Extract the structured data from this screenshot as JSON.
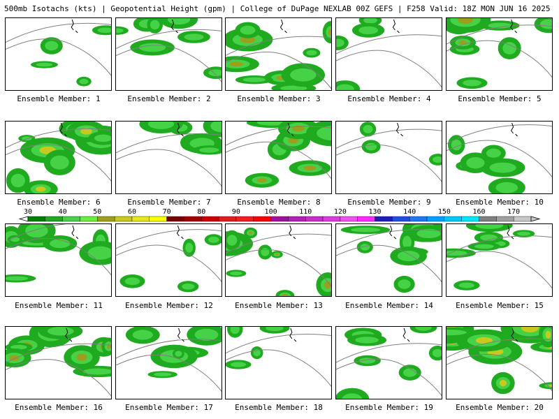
{
  "header": {
    "title": "500mb Isotachs (kts) | Geopotential Height (gpm) | College of DuPage NEXLAB   00Z GEFS | F258 Valid: 18Z MON JUN 16 2025"
  },
  "colorbar": {
    "labels": [
      "30",
      "40",
      "50",
      "60",
      "70",
      "80",
      "90",
      "100",
      "110",
      "120",
      "130",
      "140",
      "150",
      "160",
      "170"
    ],
    "colors": [
      "#007f00",
      "#1faa1f",
      "#46d246",
      "#68ef3c",
      "#9e9e1e",
      "#c8c81e",
      "#e6e61e",
      "#ffff00",
      "#7a0000",
      "#a00000",
      "#c80000",
      "#dc1e1e",
      "#f01e1e",
      "#ff0000",
      "#a0109e",
      "#b41eb4",
      "#c82dc8",
      "#dc3cdc",
      "#f050f0",
      "#ff28ff",
      "#1e1eb4",
      "#1e50dc",
      "#1e78f0",
      "#00a0ff",
      "#00c8ff",
      "#00e6ff",
      "#808080",
      "#a0a0a0",
      "#c8c8c8"
    ]
  },
  "members": [
    {
      "label": "Ensemble Member: 1",
      "intensity": 0.05
    },
    {
      "label": "Ensemble Member: 2",
      "intensity": 0.35
    },
    {
      "label": "Ensemble Member: 3",
      "intensity": 0.55
    },
    {
      "label": "Ensemble Member: 4",
      "intensity": 0.06
    },
    {
      "label": "Ensemble Member: 5",
      "intensity": 0.5
    },
    {
      "label": "Ensemble Member: 6",
      "intensity": 0.7
    },
    {
      "label": "Ensemble Member: 7",
      "intensity": 0.3
    },
    {
      "label": "Ensemble Member: 8",
      "intensity": 0.55
    },
    {
      "label": "Ensemble Member: 9",
      "intensity": 0.04
    },
    {
      "label": "Ensemble Member: 10",
      "intensity": 0.3
    },
    {
      "label": "Ensemble Member: 11",
      "intensity": 0.45
    },
    {
      "label": "Ensemble Member: 12",
      "intensity": 0.1
    },
    {
      "label": "Ensemble Member: 13",
      "intensity": 0.5
    },
    {
      "label": "Ensemble Member: 14",
      "intensity": 0.45
    },
    {
      "label": "Ensemble Member: 15",
      "intensity": 0.35
    },
    {
      "label": "Ensemble Member: 16",
      "intensity": 0.6
    },
    {
      "label": "Ensemble Member: 17",
      "intensity": 0.45
    },
    {
      "label": "Ensemble Member: 18",
      "intensity": 0.1
    },
    {
      "label": "Ensemble Member: 19",
      "intensity": 0.4
    },
    {
      "label": "Ensemble Member: 20",
      "intensity": 0.75
    }
  ]
}
